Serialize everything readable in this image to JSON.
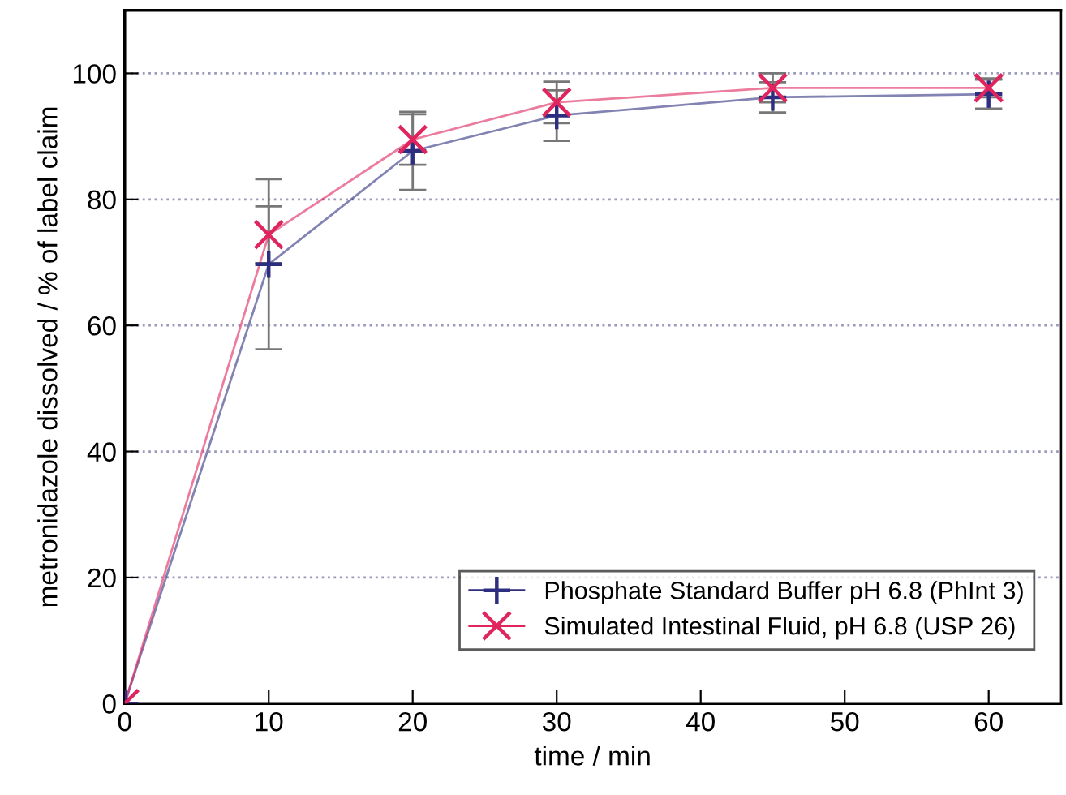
{
  "chart_data": {
    "type": "line",
    "xlabel": "time / min",
    "ylabel": "metronidazole dissolved / % of label claim",
    "x": [
      0,
      10,
      20,
      30,
      45,
      60
    ],
    "series": [
      {
        "name": "Phosphate Standard Buffer pH 6.8 (PhInt 3)",
        "color": "#2e2e80",
        "values": [
          0,
          69.7,
          87.7,
          93.3,
          96.2,
          96.7
        ],
        "errors": [
          null,
          13.5,
          6.2,
          4,
          2.4,
          2.3
        ],
        "marker": "cross"
      },
      {
        "name": "Simulated Intestinal Fluid, pH 6.8 (USP 26)",
        "color": "#e0245e",
        "values": [
          0,
          74.4,
          89.5,
          95.4,
          97.7,
          97.7
        ],
        "errors": [
          null,
          4.5,
          4,
          3.3,
          2.3,
          1.5
        ],
        "marker": "x"
      }
    ],
    "xlim": [
      0,
      65
    ],
    "ylim": [
      0,
      110
    ],
    "xticks": [
      0,
      10,
      20,
      30,
      40,
      50,
      60
    ],
    "yticks": [
      0,
      20,
      40,
      60,
      80,
      100
    ],
    "grid": "y",
    "legend": "bottom right"
  }
}
